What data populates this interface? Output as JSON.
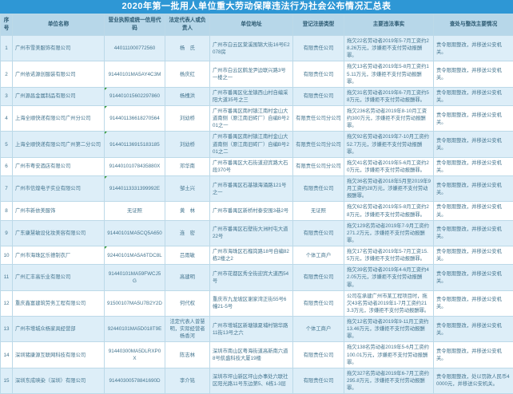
{
  "title": "2020年第一批用人单位重大劳动保障违法行为社会公布情况汇总表",
  "colors": {
    "title_bar_bg": "#2e97d5",
    "title_text": "#ffffff",
    "header_bg": "#b7d7e9",
    "row_alt_bg": "#ddeef8",
    "grid_line": "#bcd9e8",
    "body_text": "#44758f",
    "excel_marker_green": "#3a9a3a"
  },
  "table": {
    "columns": [
      {
        "key": "index",
        "label": "序号"
      },
      {
        "key": "name",
        "label": "单位名称"
      },
      {
        "key": "credit_code",
        "label": "营业执照或统一信用代码"
      },
      {
        "key": "legal_rep",
        "label": "法定代表人或负责人"
      },
      {
        "key": "address",
        "label": "单位地址"
      },
      {
        "key": "reg_type",
        "label": "登记注册类型"
      },
      {
        "key": "violation",
        "label": "主要违法事实"
      },
      {
        "key": "action",
        "label": "查处与整改主要情况"
      }
    ],
    "excel_marker_rows": [
      3,
      4,
      5,
      7,
      10
    ],
    "rows": [
      {
        "index": 1,
        "name": "广州市雪美服饰有限公司",
        "credit_code": "440111000772560",
        "legal_rep": "杨　氏",
        "address": "广州市白云区棠溪围锦大街16号E2078房",
        "reg_type": "有限责任公司",
        "violation": "拖欠22名劳动者2019年5-7月工资约28.26万元，涉嫌拒不支付劳动报酬罪。",
        "action": "责令限期整改，并移送公安机关。"
      },
      {
        "index": 2,
        "name": "广州依诺源创服装有限公司",
        "credit_code": "91440101MA5AY4C3M",
        "legal_rep": "杨庆红",
        "address": "广州市白云区鹤龙尹边联兴路3号一楼之一",
        "reg_type": "有限责任公司",
        "violation": "拖欠13名劳动者2019年5-8月工资约15.11万元，涉嫌拒不支付劳动报酬罪。",
        "action": "责令限期整改，并移送公安机关。"
      },
      {
        "index": 3,
        "name": "广州源昌金属制品有限公司",
        "credit_code": "914401015602297860",
        "legal_rep": "杨槐洪",
        "address": "广州市番禺区化龙镇西山村自编采阳大道35号之三",
        "reg_type": "有限责任公司",
        "violation": "拖欠31名劳动者2019年6-7月工资约58万元，涉嫌拒不支付劳动报酬罪。",
        "action": "责令限期整改，并移送公安机关。"
      },
      {
        "index": 4,
        "name": "上海全顺快递有限公司广州分公司",
        "credit_code": "914401136618270564",
        "legal_rep": "刘幼桥",
        "address": "广州市番禺区南村镇江南村金山大道南侧（原江南旧砖厂）自编B号201之一",
        "reg_type": "有限责任公司分公司",
        "violation": "拖欠236名劳动者2019年8-10月工资约300万元，涉嫌拒不支付劳动报酬罪。",
        "action": "责令限期整改，并移送公安机关。"
      },
      {
        "index": 5,
        "name": "上海全顺快递有限公司广州第二分公司",
        "credit_code": "914401136915183185",
        "legal_rep": "刘幼桥",
        "address": "广州市番禺区南村镇江南村金山大道南侧（原江南旧砖厂）自编B号201之二",
        "reg_type": "有限责任公司分公司",
        "violation": "拖欠92名劳动者2019年7-10月工资约52.7万元，涉嫌拒不支付劳动报酬罪。",
        "action": "责令限期整改，并移送公安机关。"
      },
      {
        "index": 6,
        "name": "广州市粤安酒店有限公司",
        "credit_code": "91440101078435880X",
        "legal_rep": "邓华南",
        "address": "广州市番禺区大石街道迎宾路大石段370号",
        "reg_type": "有限责任公司分公司",
        "violation": "拖欠41名劳动者2019年5-6月工资约20万元，涉嫌拒不支付劳动报酬罪。",
        "action": "责令限期整改，并移送公安机关。"
      },
      {
        "index": 7,
        "name": "广州市信煌电子实业有限公司",
        "credit_code": "91440113331399992E",
        "legal_rep": "邹土兴",
        "address": "广州市番禺区石基镇海涌路121号之一",
        "reg_type": "有限责任公司",
        "violation": "拖欠36名劳动者2018年5月至2019年9月工资约28万元，涉嫌拒不支付劳动报酬罪。",
        "action": "责令限期整改，并移送公安机关。"
      },
      {
        "index": 8,
        "name": "广州市新依美服饰",
        "credit_code": "无证照",
        "legal_rep": "黄　林",
        "address": "广州市番禺区新桥村泰安围3巷2号",
        "reg_type": "无证照",
        "violation": "拖欠62名劳动者2019年5-8月工资约28万元，涉嫌拒不支付劳动报酬罪。",
        "action": "责令限期整改，并移送公安机关。"
      },
      {
        "index": 9,
        "name": "广东康慧敏设化妆美容有限公司",
        "credit_code": "91440101MA5CQ5A650",
        "legal_rep": "连　密",
        "address": "广州市番禺区石壁街大洲村屯大道22号",
        "reg_type": "有限责任公司",
        "violation": "拖欠129名劳动者2019年7-9月工资约271.2万元，涉嫌拒不支付劳动报酬罪。",
        "action": "责令限期整改，并移送公安机关。"
      },
      {
        "index": 10,
        "name": "广州市海珠区乐德制衣厂",
        "credit_code": "92440101MA5A6TDC8L",
        "legal_rep": "吕雨敏",
        "address": "广州市海珠区石榴岗路18号自编82栋2楼之2",
        "reg_type": "个体工商户",
        "violation": "拖欠17名劳动者2019年5-7月工资15.5万元，涉嫌拒不支付劳动报酬罪。",
        "action": "责令限期整改，并移送公安机关。"
      },
      {
        "index": 11,
        "name": "广州汇丰高乐业有限公司",
        "credit_code": "91440101MA59FWCJ5G",
        "legal_rep": "高建明",
        "address": "广州市花都区秀全街迎宾大道西54号",
        "reg_type": "有限责任公司",
        "violation": "拖欠39名劳动者2019年4-6月工资约42.05万元，涉嫌拒不支付劳动报酬罪。",
        "action": "责令限期整改，并移送公安机关。"
      },
      {
        "index": 12,
        "name": "重庆鑫富建筑劳务工程有限公司",
        "credit_code": "91500107MA5U7B2Y2D",
        "legal_rep": "何代权",
        "address": "重庆市九龙坡区谢家湾正街55号6幢21-5号",
        "reg_type": "有限责任公司",
        "violation": "公司在承建广州市某工程项目时，拖欠43名劳动者2019年1-7月工资约213.3万元，涉嫌拒不支付劳动报酬罪。",
        "action": "责令限期整改，并移送公安机关。"
      },
      {
        "index": 13,
        "name": "广州市增城众杨家具经营部",
        "credit_code": "92440101MA5D018T9E",
        "legal_rep": "法定代表人曾慧明，实际经营者杨香河",
        "address": "广州市增城区新塘镇夏埔村锦华路11街13号之六",
        "reg_type": "个体工商户",
        "violation": "拖欠12名劳动者2019年9-11月工资约13.46万元，涉嫌拒不支付劳动报酬罪。",
        "action": "责令限期整改，并移送公安机关。"
      },
      {
        "index": 14,
        "name": "深圳猪康源互联网科技有限公司",
        "credit_code": "91440300MA5DLRXP0X",
        "legal_rep": "陈志林",
        "address": "深圳市南山区粤海街道高新南六道8号航盛科技大厦19楼",
        "reg_type": "有限责任公司",
        "violation": "拖欠138名劳动者2019年5-6月工资约100.01万元，涉嫌拒不支付劳动报酬罪。",
        "action": "责令限期整改，并移送公安机关。"
      },
      {
        "index": 15,
        "name": "深圳东成映染（深圳）有限公司",
        "credit_code": "91440300578841690D",
        "legal_rep": "李介铭",
        "address": "深圳市坪山新区坪山办事处六联社区阳光路11号东边第5、6栋1-3层",
        "reg_type": "有限责任公司",
        "violation": "拖欠327名劳动者2019年6-7月工资约295.8万元，涉嫌拒不支付劳动报酬罪。",
        "action": "责令限期整改，处以罚款人民币40000元，并移送公安机关。"
      }
    ]
  }
}
